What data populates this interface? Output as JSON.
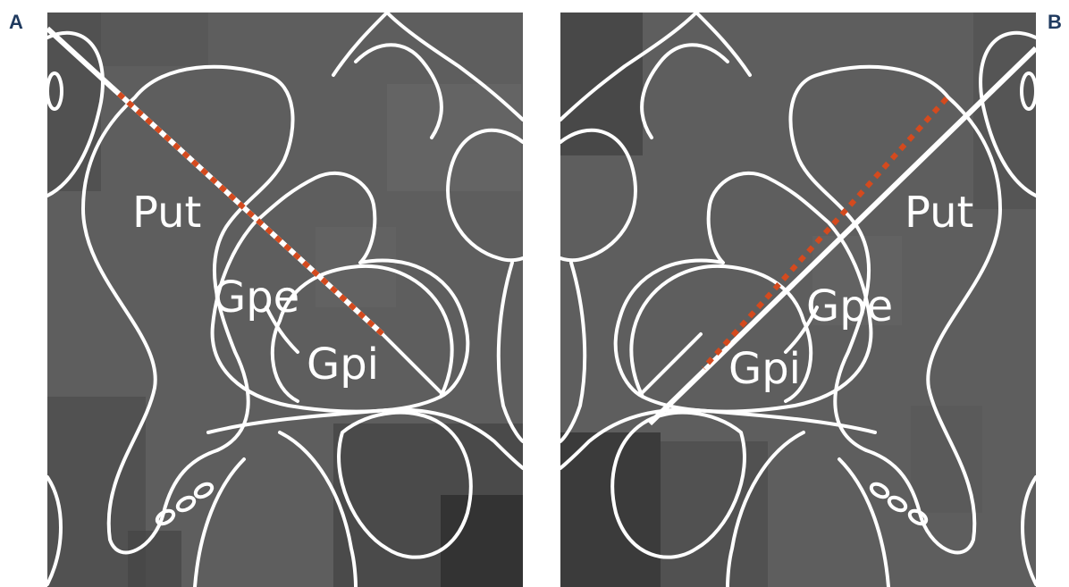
{
  "figure": {
    "panels": [
      {
        "letter": "A",
        "labels": {
          "put": "Put",
          "gpe": "Gpe",
          "gpi": "Gpi"
        }
      },
      {
        "letter": "B",
        "labels": {
          "put": "Put",
          "gpe": "Gpe",
          "gpi": "Gpi"
        }
      }
    ],
    "colors": {
      "background": "#5e5e5e",
      "outline": "#ffffff",
      "trajectory_dash": "#d44a1e",
      "letter": "#1f3a5f"
    }
  }
}
